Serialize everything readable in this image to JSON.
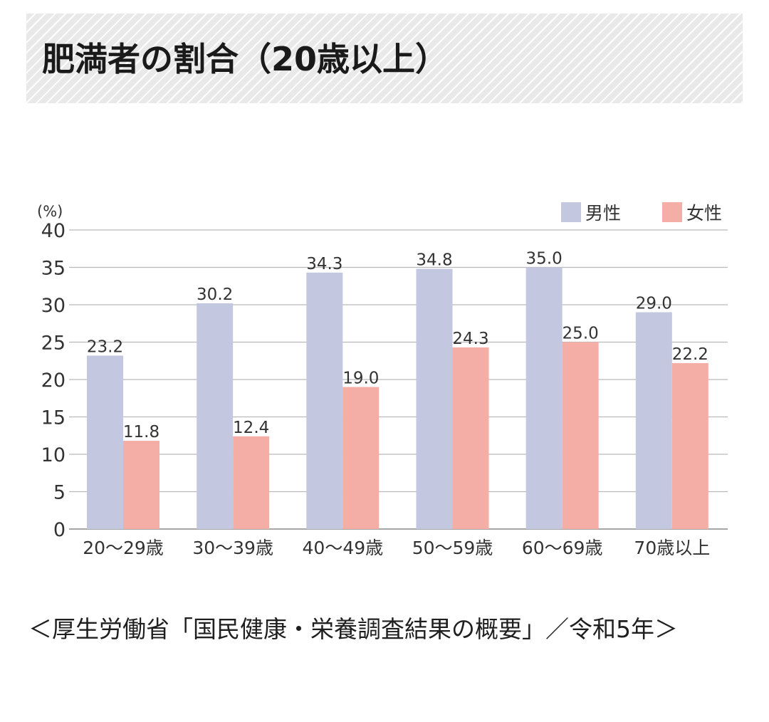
{
  "title": "肥満者の割合（20歳以上）",
  "chart_data": {
    "type": "bar",
    "unit_label": "(%)",
    "categories": [
      "20～29歳",
      "30～39歳",
      "40～49歳",
      "50～59歳",
      "60～69歳",
      "70歳以上"
    ],
    "series": [
      {
        "name": "男性",
        "color": "#c3c8e0",
        "values": [
          23.2,
          30.2,
          34.3,
          34.8,
          35.0,
          29.0
        ],
        "labels": [
          "23.2",
          "30.2",
          "34.3",
          "34.8",
          "35.0",
          "29.0"
        ]
      },
      {
        "name": "女性",
        "color": "#f4aea6",
        "values": [
          11.8,
          12.4,
          19.0,
          24.3,
          25.0,
          22.2
        ],
        "labels": [
          "11.8",
          "12.4",
          "19.0",
          "24.3",
          "25.0",
          "22.2"
        ]
      }
    ],
    "yticks": [
      "0",
      "5",
      "10",
      "15",
      "20",
      "25",
      "30",
      "35",
      "40"
    ],
    "ylim": [
      0,
      40
    ],
    "grid": true,
    "legend_position": "top-right"
  },
  "source_text": "＜厚生労働省「国民健康・栄養調査結果の概要」／令和5年＞"
}
